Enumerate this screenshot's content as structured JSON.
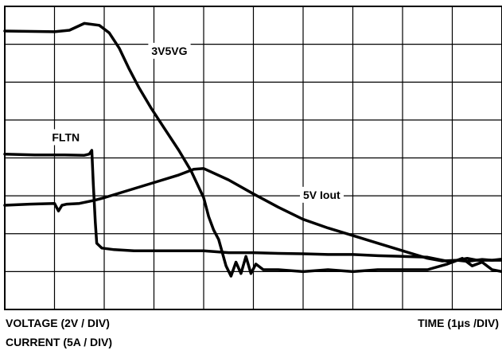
{
  "chart_data": {
    "type": "line",
    "grid": true,
    "divisions": {
      "x": 10,
      "y": 8
    },
    "xlim": [
      0,
      10
    ],
    "ylim": [
      0,
      8
    ],
    "x_units": "div",
    "y_units": "div",
    "axis_notes": {
      "voltage": "VOLTAGE (2V / DIV)",
      "current": "CURRENT (5A / DIV)",
      "time": "TIME (1μs /DIV)"
    },
    "series": [
      {
        "name": "3V5VG",
        "label_text": "3V5VG",
        "label_anchor": [
          2.95,
          6.8
        ],
        "x": [
          0,
          1.0,
          1.3,
          1.6,
          1.9,
          2.1,
          2.3,
          2.5,
          2.7,
          2.95,
          3.2,
          3.5,
          3.75,
          4.0,
          4.1,
          4.2,
          4.3,
          4.45,
          4.55,
          4.65,
          4.75,
          4.85,
          4.95,
          5.05,
          5.2,
          5.5,
          6.0,
          6.5,
          7.0,
          7.5,
          8.0,
          8.5,
          8.9,
          9.1,
          9.3,
          9.5,
          9.7,
          10.0
        ],
        "y": [
          7.35,
          7.33,
          7.37,
          7.55,
          7.5,
          7.3,
          6.9,
          6.35,
          5.85,
          5.3,
          4.8,
          4.2,
          3.65,
          2.95,
          2.45,
          2.1,
          1.85,
          1.15,
          0.88,
          1.25,
          0.95,
          1.4,
          0.95,
          1.2,
          1.05,
          1.05,
          1.0,
          1.05,
          1.0,
          1.05,
          1.05,
          1.05,
          1.2,
          1.3,
          1.35,
          1.3,
          1.3,
          1.3
        ]
      },
      {
        "name": "FLTN",
        "label_text": "FLTN",
        "label_anchor": [
          0.95,
          4.52
        ],
        "x": [
          0,
          0.6,
          1.2,
          1.6,
          1.7,
          1.75,
          1.78,
          1.82,
          1.85,
          1.95,
          2.2,
          2.6,
          3.0,
          3.5,
          4.0,
          4.5,
          5.0,
          5.5,
          6.0,
          6.5,
          7.0,
          7.5,
          8.0,
          8.5,
          8.8,
          9.0,
          9.2,
          9.4,
          9.6,
          9.8,
          10.0
        ],
        "y": [
          4.1,
          4.08,
          4.08,
          4.07,
          4.1,
          4.2,
          3.3,
          2.3,
          1.75,
          1.62,
          1.58,
          1.55,
          1.55,
          1.55,
          1.55,
          1.5,
          1.5,
          1.48,
          1.47,
          1.45,
          1.45,
          1.42,
          1.4,
          1.38,
          1.3,
          1.25,
          1.35,
          1.15,
          1.25,
          1.05,
          1.0
        ]
      },
      {
        "name": "5V Iout",
        "label_text": "5V Iout",
        "label_anchor": [
          6.0,
          3.0
        ],
        "x": [
          0,
          0.5,
          1.0,
          1.08,
          1.15,
          1.25,
          1.5,
          1.8,
          2.0,
          2.5,
          3.0,
          3.5,
          3.8,
          4.0,
          4.5,
          5.0,
          5.5,
          6.0,
          6.5,
          7.0,
          7.5,
          8.0,
          8.5,
          8.8,
          9.1,
          9.3,
          9.6,
          9.8,
          10.0
        ],
        "y": [
          2.75,
          2.78,
          2.8,
          2.6,
          2.75,
          2.78,
          2.8,
          2.88,
          2.95,
          3.15,
          3.35,
          3.55,
          3.7,
          3.72,
          3.42,
          3.05,
          2.7,
          2.38,
          2.15,
          1.95,
          1.75,
          1.55,
          1.35,
          1.28,
          1.3,
          1.27,
          1.32,
          1.3,
          1.33
        ]
      }
    ]
  }
}
